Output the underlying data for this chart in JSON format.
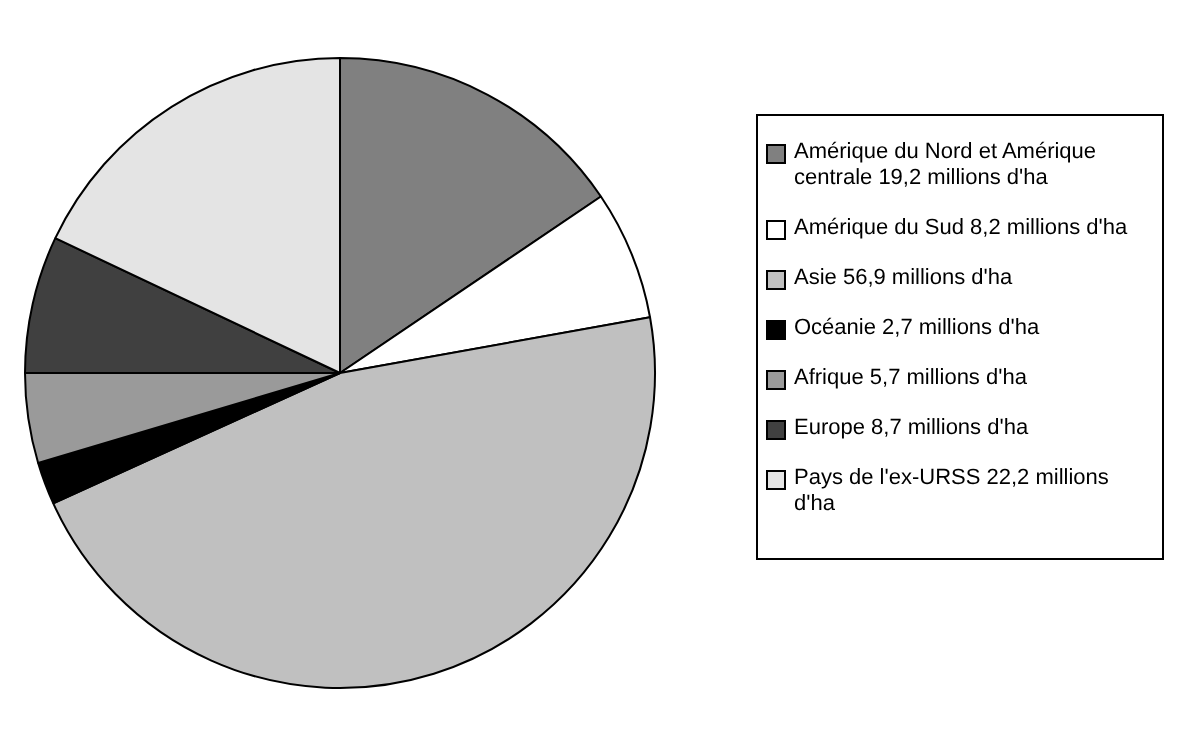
{
  "chart_data": {
    "type": "pie",
    "categories": [
      "Amérique du Nord et Amérique centrale",
      "Amérique du Sud",
      "Asie",
      "Océanie",
      "Afrique",
      "Europe",
      "Pays de l'ex-URSS"
    ],
    "values": [
      19.2,
      8.2,
      56.9,
      2.7,
      5.7,
      8.7,
      22.2
    ],
    "value_labels": [
      "19,2 millions d'ha",
      "8,2 millions d'ha",
      "56,9 millions d'ha",
      "2,7 millions d'ha",
      "5,7 millions d'ha",
      "8,7 millions d'ha",
      "22,2 millions d'ha"
    ],
    "colors": [
      "#808080",
      "#ffffff",
      "#c0c0c0",
      "#000000",
      "#9a9a9a",
      "#404040",
      "#e4e4e4"
    ],
    "legend": "right"
  }
}
